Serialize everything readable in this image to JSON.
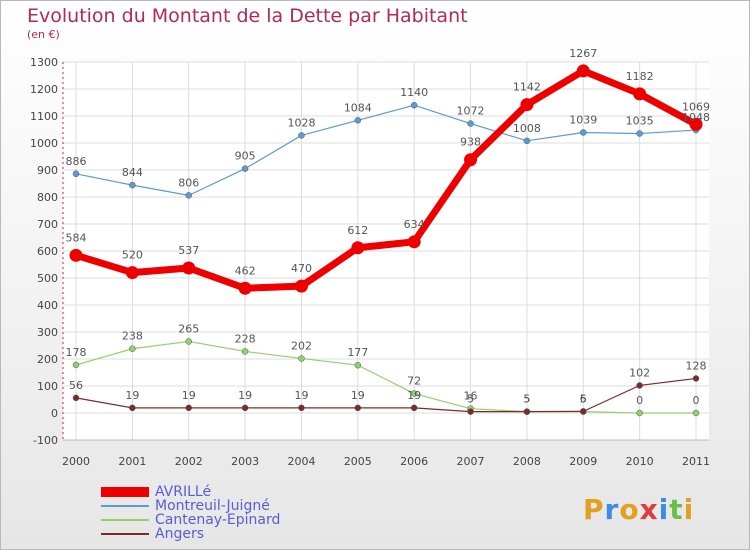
{
  "title": "Evolution du Montant de la Dette par Habitant",
  "subtitle": "(en €)",
  "logo": {
    "text": "Proxiti",
    "letters": [
      {
        "ch": "P",
        "color": "#e0a020"
      },
      {
        "ch": "r",
        "color": "#3a8de0"
      },
      {
        "ch": "o",
        "color": "#e0a020"
      },
      {
        "ch": "x",
        "color": "#e03a3a"
      },
      {
        "ch": "i",
        "color": "#3a8de0"
      },
      {
        "ch": "t",
        "color": "#6cc04a"
      },
      {
        "ch": "i",
        "color": "#e0a020"
      }
    ]
  },
  "chart_data": {
    "type": "line",
    "title": "Evolution du Montant de la Dette par Habitant",
    "subtitle": "(en €)",
    "x": [
      "2000",
      "2001",
      "2002",
      "2003",
      "2004",
      "2005",
      "2006",
      "2007",
      "2008",
      "2009",
      "2010",
      "2011"
    ],
    "ylim": [
      -100,
      1300
    ],
    "yticks": [
      -100,
      0,
      100,
      200,
      300,
      400,
      500,
      600,
      700,
      800,
      900,
      1000,
      1100,
      1200,
      1300
    ],
    "grid": true,
    "legend_position": "bottom-left",
    "series": [
      {
        "name": "AVRILLé",
        "color": "#ee0000",
        "values": [
          584,
          520,
          537,
          462,
          470,
          612,
          634,
          938,
          1142,
          1267,
          1182,
          1069
        ],
        "labels": [
          "584",
          "520",
          "537",
          "462",
          "470",
          "612",
          "634",
          "938",
          "1142",
          "1267",
          "1182",
          "1069"
        ]
      },
      {
        "name": "Montreuil-Juigné",
        "color": "#5a9bd5",
        "values": [
          886,
          844,
          806,
          905,
          1028,
          1084,
          1140,
          1072,
          1008,
          1039,
          1035,
          1048
        ],
        "labels": [
          "886",
          "844",
          "806",
          "905",
          "1028",
          "1084",
          "1140",
          "1072",
          "1008",
          "1039",
          "1035",
          "1048"
        ]
      },
      {
        "name": "Cantenay-Epinard",
        "color": "#8fd16a",
        "values": [
          178,
          238,
          265,
          228,
          202,
          177,
          72,
          16,
          5,
          5,
          0,
          0
        ],
        "labels": [
          "178",
          "238",
          "265",
          "228",
          "202",
          "177",
          "72",
          "16",
          "5",
          "5",
          "0",
          "0"
        ]
      },
      {
        "name": "Angers",
        "color": "#7a2b2b",
        "values": [
          56,
          19,
          19,
          19,
          19,
          19,
          19,
          5,
          5,
          6,
          102,
          128
        ],
        "labels": [
          "56",
          "19",
          "19",
          "19",
          "19",
          "19",
          "19",
          "5",
          "5",
          "6",
          "102",
          "128"
        ]
      }
    ]
  }
}
